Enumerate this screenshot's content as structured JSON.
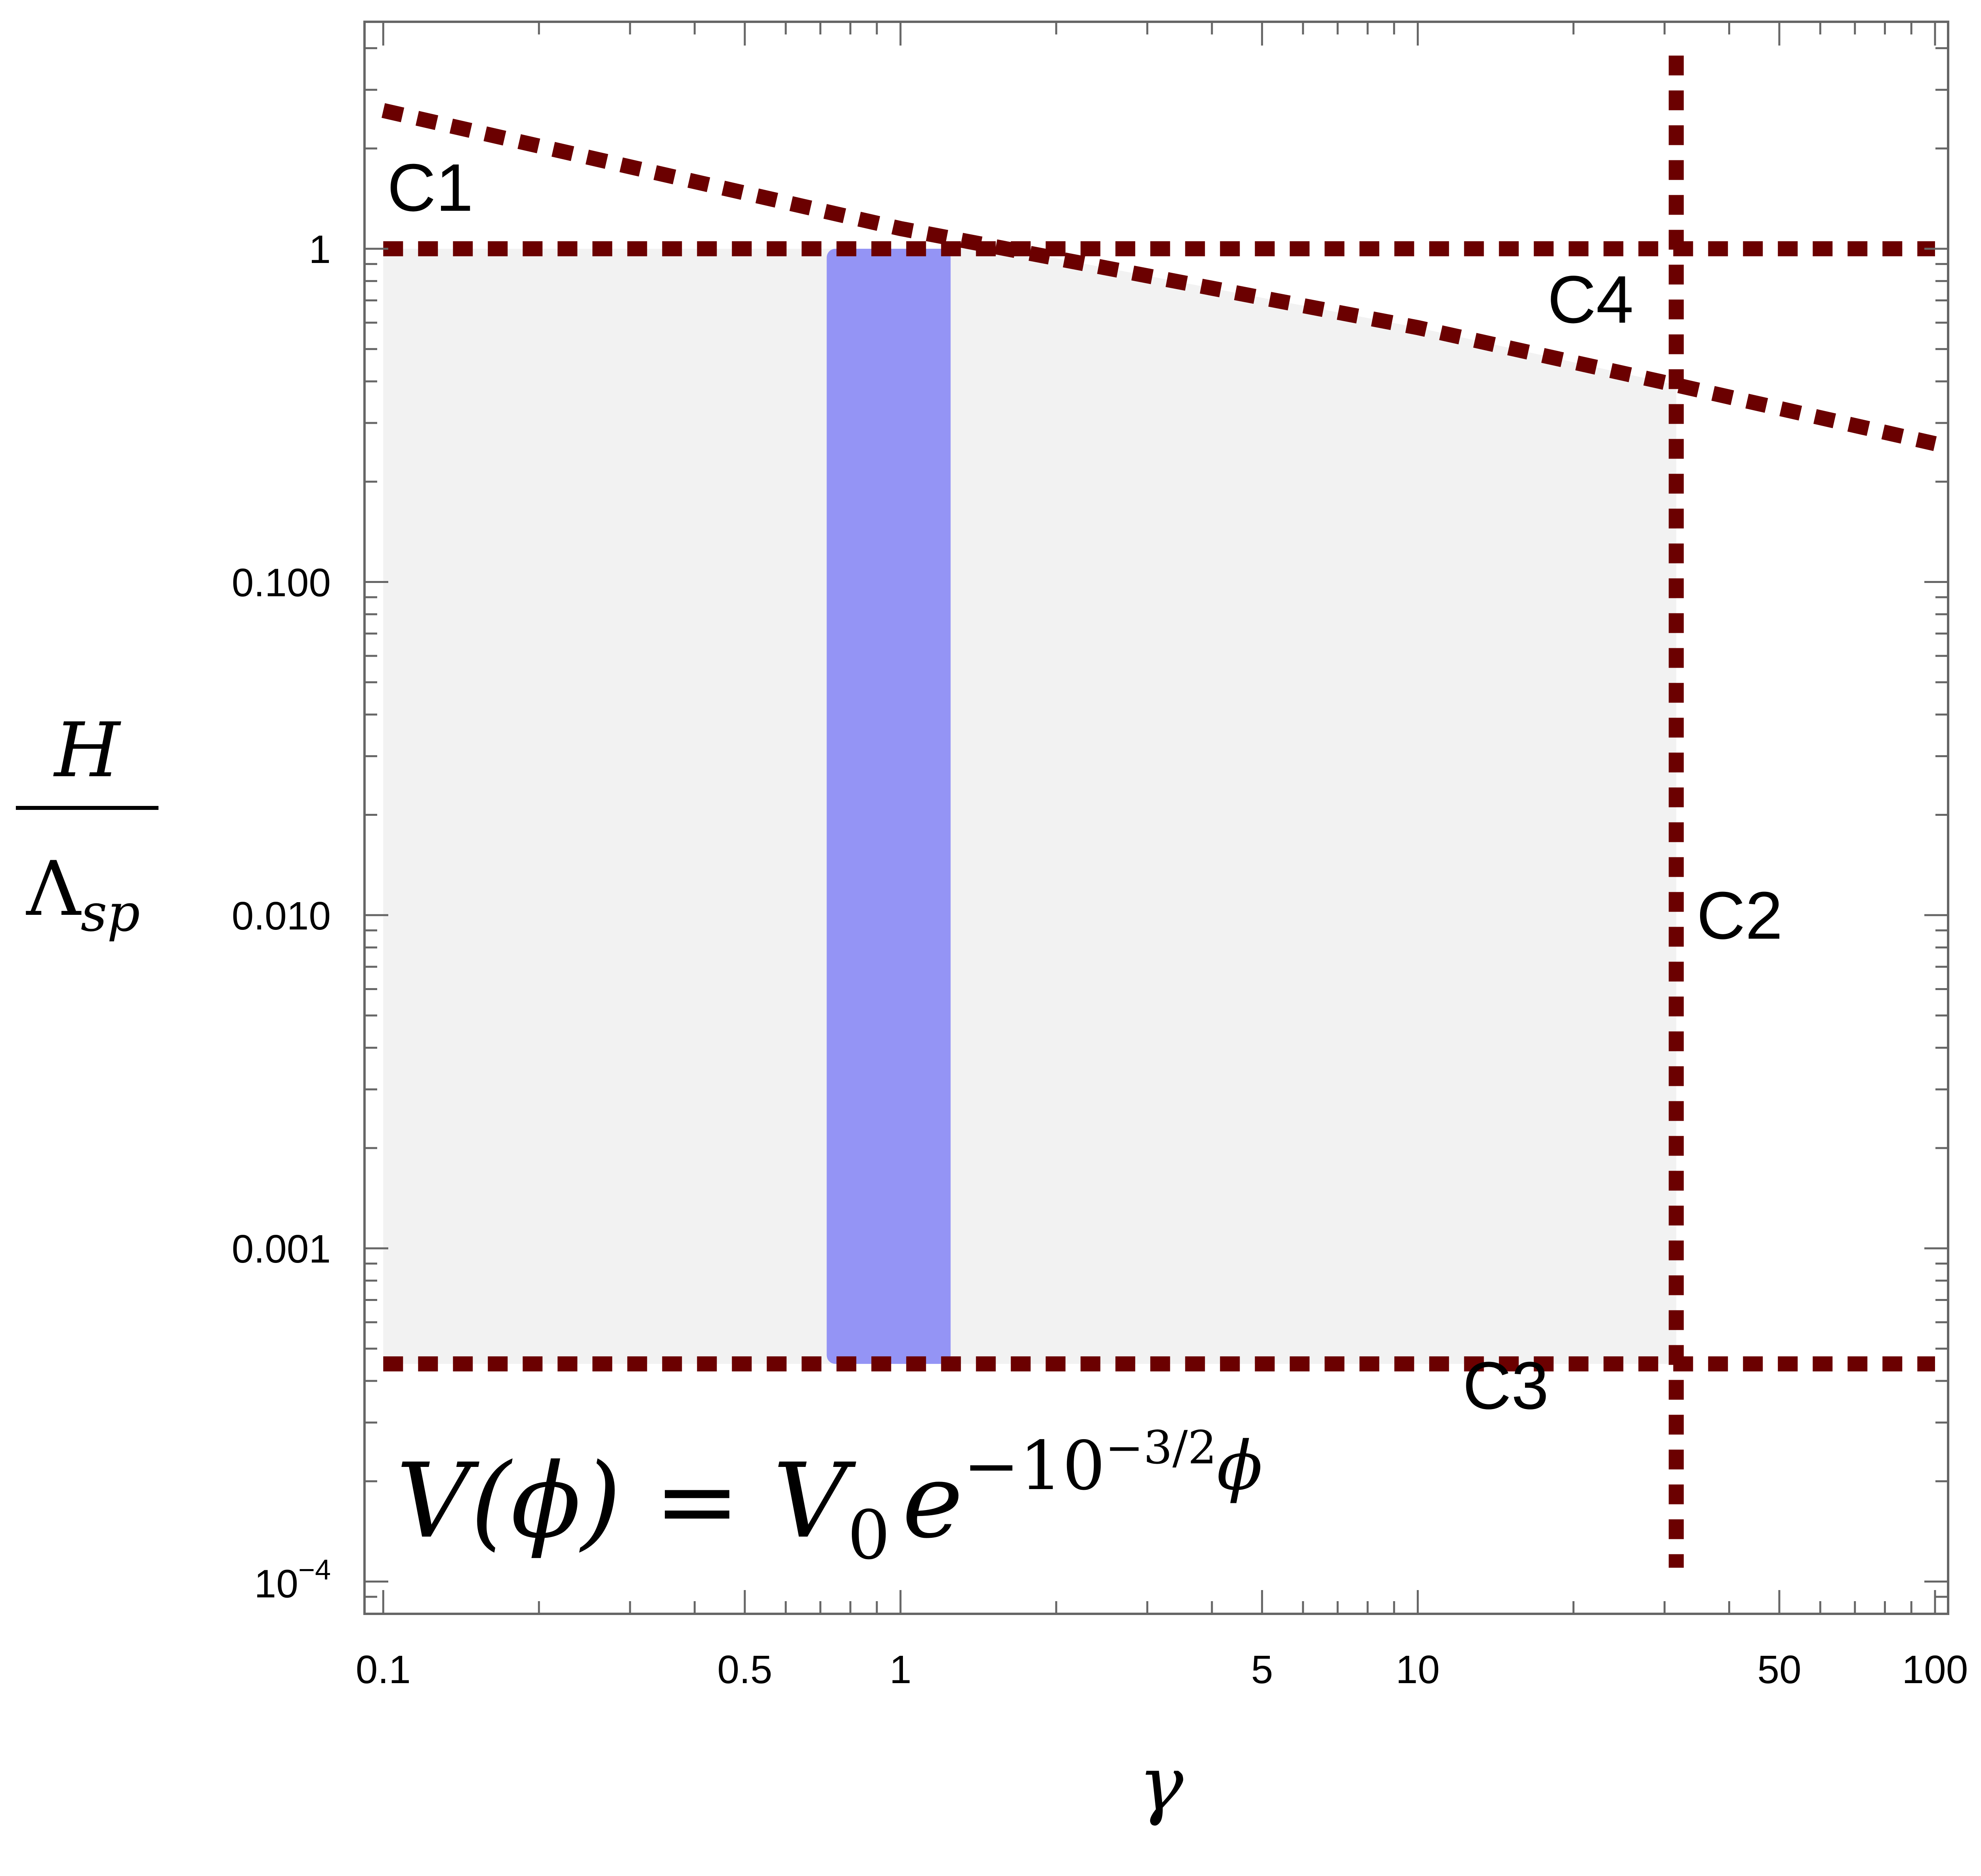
{
  "chart_data": {
    "type": "line",
    "x_scale": "log",
    "y_scale": "log",
    "xlim": [
      0.092,
      106
    ],
    "ylim": [
      8e-05,
      4.8
    ],
    "xlabel": "γ",
    "ylabel": {
      "numerator": "H",
      "denominator_main": "Λ",
      "denominator_sub": "sp"
    },
    "x_ticks": [
      {
        "value": 0.1,
        "label": "0.1"
      },
      {
        "value": 0.5,
        "label": "0.5"
      },
      {
        "value": 1,
        "label": "1"
      },
      {
        "value": 5,
        "label": "5"
      },
      {
        "value": 10,
        "label": "10"
      },
      {
        "value": 50,
        "label": "50"
      },
      {
        "value": 100,
        "label": "100"
      }
    ],
    "y_ticks": [
      {
        "value": 1,
        "label": "1"
      },
      {
        "value": 0.1,
        "label": "0.100"
      },
      {
        "value": 0.01,
        "label": "0.010"
      },
      {
        "value": 0.001,
        "label": "0.001"
      },
      {
        "value": 0.0001,
        "label_base": "10",
        "label_exp": "−4"
      }
    ],
    "grid": false,
    "series": [
      {
        "name": "C1",
        "kind": "horizontal",
        "y": 1,
        "x_range": [
          0.1,
          100
        ]
      },
      {
        "name": "C2",
        "kind": "vertical",
        "x": 31.6,
        "y_range": [
          0.00011,
          3.8
        ]
      },
      {
        "name": "C3",
        "kind": "horizontal",
        "y": 0.00045,
        "x_range": [
          0.1,
          100
        ]
      },
      {
        "name": "C4",
        "kind": "line",
        "points": [
          [
            0.1,
            2.6
          ],
          [
            1,
            1.15
          ],
          [
            10,
            0.58
          ],
          [
            31.6,
            0.39
          ],
          [
            100,
            0.26
          ]
        ]
      }
    ],
    "regions": [
      {
        "kind": "allowed",
        "color": "#f2f2f2",
        "polygon": [
          [
            0.1,
            0.00045
          ],
          [
            31.6,
            0.00045
          ],
          [
            31.6,
            0.39
          ],
          [
            10,
            0.58
          ],
          [
            1.6,
            1
          ],
          [
            0.1,
            1
          ]
        ]
      },
      {
        "kind": "band",
        "color": "#9494f5",
        "x_range": [
          0.72,
          1.25
        ],
        "y_range": [
          0.00045,
          1
        ]
      }
    ],
    "curve_labels": [
      {
        "text": "C1",
        "x": 0.1,
        "y": 1.3
      },
      {
        "text": "C4",
        "x": 17.5,
        "y": 0.6
      },
      {
        "text": "C2",
        "x": 34,
        "y": 0.0085
      },
      {
        "text": "C3",
        "x": 12,
        "y": 0.00033
      }
    ],
    "annotation": {
      "lhs": "V(ϕ) = ",
      "v0": "V",
      "v0_sub": "0",
      "e": "e",
      "exponent": "−10",
      "exp_sup": "−3/2",
      "exp_tail": "ϕ"
    },
    "colors": {
      "curves": "#6b0000",
      "allowed": "#f2f2f2",
      "band": "#9494f5",
      "frame": "#666666"
    }
  }
}
